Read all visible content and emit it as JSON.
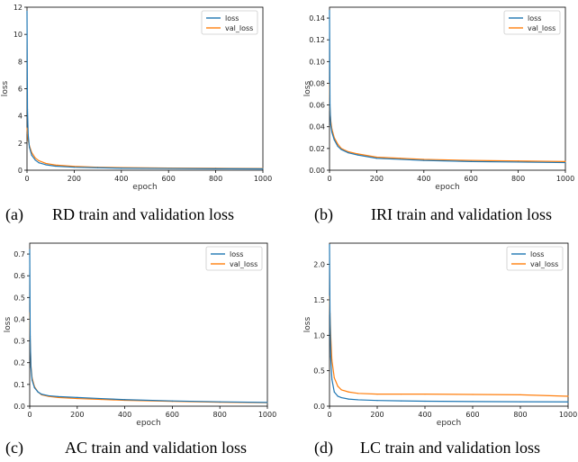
{
  "figure": {
    "colors": {
      "loss": "#1f77b4",
      "val_loss": "#ff7f0e"
    }
  },
  "chart_data": [
    {
      "type": "line",
      "panel": "(a)",
      "caption": "RD train and validation loss",
      "xlabel": "epoch",
      "ylabel": "loss",
      "xlim": [
        0,
        1000
      ],
      "ylim": [
        0,
        12
      ],
      "xticks": [
        0,
        200,
        400,
        600,
        800,
        1000
      ],
      "xtick_labels": [
        "0",
        "200",
        "400",
        "600",
        "800",
        "1000"
      ],
      "yticks": [
        0,
        2,
        4,
        6,
        8,
        10,
        12
      ],
      "ytick_labels": [
        "0",
        "2",
        "4",
        "6",
        "8",
        "10",
        "12"
      ],
      "legend": "top-right",
      "series": [
        {
          "name": "loss",
          "x": [
            0,
            2,
            5,
            10,
            20,
            35,
            50,
            80,
            120,
            200,
            300,
            400,
            600,
            800,
            1000
          ],
          "y": [
            11.7,
            4.5,
            2.6,
            1.7,
            1.1,
            0.75,
            0.55,
            0.4,
            0.3,
            0.22,
            0.18,
            0.15,
            0.13,
            0.11,
            0.1
          ]
        },
        {
          "name": "val_loss",
          "x": [
            0,
            2,
            5,
            10,
            20,
            35,
            50,
            80,
            120,
            200,
            300,
            400,
            600,
            800,
            1000
          ],
          "y": [
            3.1,
            2.7,
            2.2,
            1.8,
            1.3,
            0.9,
            0.7,
            0.5,
            0.38,
            0.28,
            0.22,
            0.19,
            0.16,
            0.14,
            0.13
          ]
        }
      ]
    },
    {
      "type": "line",
      "panel": "(b)",
      "caption": "IRI train and validation loss",
      "xlabel": "epoch",
      "ylabel": "loss",
      "xlim": [
        0,
        1000
      ],
      "ylim": [
        0,
        0.15
      ],
      "xticks": [
        0,
        200,
        400,
        600,
        800,
        1000
      ],
      "xtick_labels": [
        "0",
        "200",
        "400",
        "600",
        "800",
        "1000"
      ],
      "yticks": [
        0,
        0.02,
        0.04,
        0.06,
        0.08,
        0.1,
        0.12,
        0.14
      ],
      "ytick_labels": [
        "0.00",
        "0.02",
        "0.04",
        "0.06",
        "0.08",
        "0.10",
        "0.12",
        "0.14"
      ],
      "legend": "top-right",
      "series": [
        {
          "name": "loss",
          "x": [
            0,
            2,
            5,
            10,
            20,
            35,
            50,
            80,
            120,
            200,
            300,
            400,
            600,
            800,
            1000
          ],
          "y": [
            0.147,
            0.06,
            0.042,
            0.035,
            0.028,
            0.022,
            0.019,
            0.016,
            0.014,
            0.011,
            0.01,
            0.009,
            0.008,
            0.0075,
            0.007
          ]
        },
        {
          "name": "val_loss",
          "x": [
            0,
            2,
            5,
            10,
            20,
            35,
            50,
            80,
            120,
            200,
            300,
            400,
            600,
            800,
            1000
          ],
          "y": [
            0.08,
            0.055,
            0.046,
            0.038,
            0.03,
            0.024,
            0.02,
            0.017,
            0.015,
            0.012,
            0.011,
            0.01,
            0.009,
            0.0085,
            0.008
          ]
        }
      ]
    },
    {
      "type": "line",
      "panel": "(c)",
      "caption": "AC train and validation loss",
      "xlabel": "epoch",
      "ylabel": "loss",
      "xlim": [
        0,
        1000
      ],
      "ylim": [
        0,
        0.75
      ],
      "xticks": [
        0,
        200,
        400,
        600,
        800,
        1000
      ],
      "xtick_labels": [
        "0",
        "200",
        "400",
        "600",
        "800",
        "1000"
      ],
      "yticks": [
        0,
        0.1,
        0.2,
        0.3,
        0.4,
        0.5,
        0.6,
        0.7
      ],
      "ytick_labels": [
        "0.0",
        "0.1",
        "0.2",
        "0.3",
        "0.4",
        "0.5",
        "0.6",
        "0.7"
      ],
      "legend": "top-right",
      "series": [
        {
          "name": "loss",
          "x": [
            0,
            2,
            5,
            10,
            20,
            35,
            50,
            80,
            120,
            200,
            300,
            400,
            600,
            800,
            1000
          ],
          "y": [
            0.72,
            0.32,
            0.18,
            0.12,
            0.085,
            0.065,
            0.055,
            0.048,
            0.044,
            0.04,
            0.035,
            0.03,
            0.024,
            0.02,
            0.017
          ]
        },
        {
          "name": "val_loss",
          "x": [
            0,
            2,
            5,
            10,
            20,
            35,
            50,
            80,
            120,
            200,
            300,
            400,
            600,
            800,
            1000
          ],
          "y": [
            0.43,
            0.3,
            0.19,
            0.13,
            0.09,
            0.065,
            0.052,
            0.045,
            0.04,
            0.035,
            0.031,
            0.027,
            0.022,
            0.018,
            0.016
          ]
        }
      ]
    },
    {
      "type": "line",
      "panel": "(d)",
      "caption": "LC train and validation loss",
      "xlabel": "epoch",
      "ylabel": "loss",
      "xlim": [
        0,
        1000
      ],
      "ylim": [
        0,
        2.3
      ],
      "xticks": [
        0,
        200,
        400,
        600,
        800,
        1000
      ],
      "xtick_labels": [
        "0",
        "200",
        "400",
        "600",
        "800",
        "1000"
      ],
      "yticks": [
        0,
        0.5,
        1,
        1.5,
        2
      ],
      "ytick_labels": [
        "0.0",
        "0.5",
        "1.0",
        "1.5",
        "2.0"
      ],
      "legend": "top-right",
      "series": [
        {
          "name": "loss",
          "x": [
            0,
            2,
            5,
            10,
            20,
            35,
            50,
            80,
            120,
            200,
            300,
            400,
            600,
            800,
            1000
          ],
          "y": [
            2.28,
            1.3,
            0.7,
            0.38,
            0.2,
            0.14,
            0.12,
            0.1,
            0.09,
            0.08,
            0.075,
            0.07,
            0.065,
            0.062,
            0.06
          ]
        },
        {
          "name": "val_loss",
          "x": [
            0,
            2,
            5,
            10,
            20,
            35,
            50,
            80,
            120,
            200,
            300,
            400,
            600,
            800,
            1000
          ],
          "y": [
            1.55,
            1.3,
            1.0,
            0.65,
            0.4,
            0.28,
            0.23,
            0.2,
            0.18,
            0.17,
            0.17,
            0.17,
            0.165,
            0.16,
            0.14
          ]
        }
      ]
    }
  ]
}
